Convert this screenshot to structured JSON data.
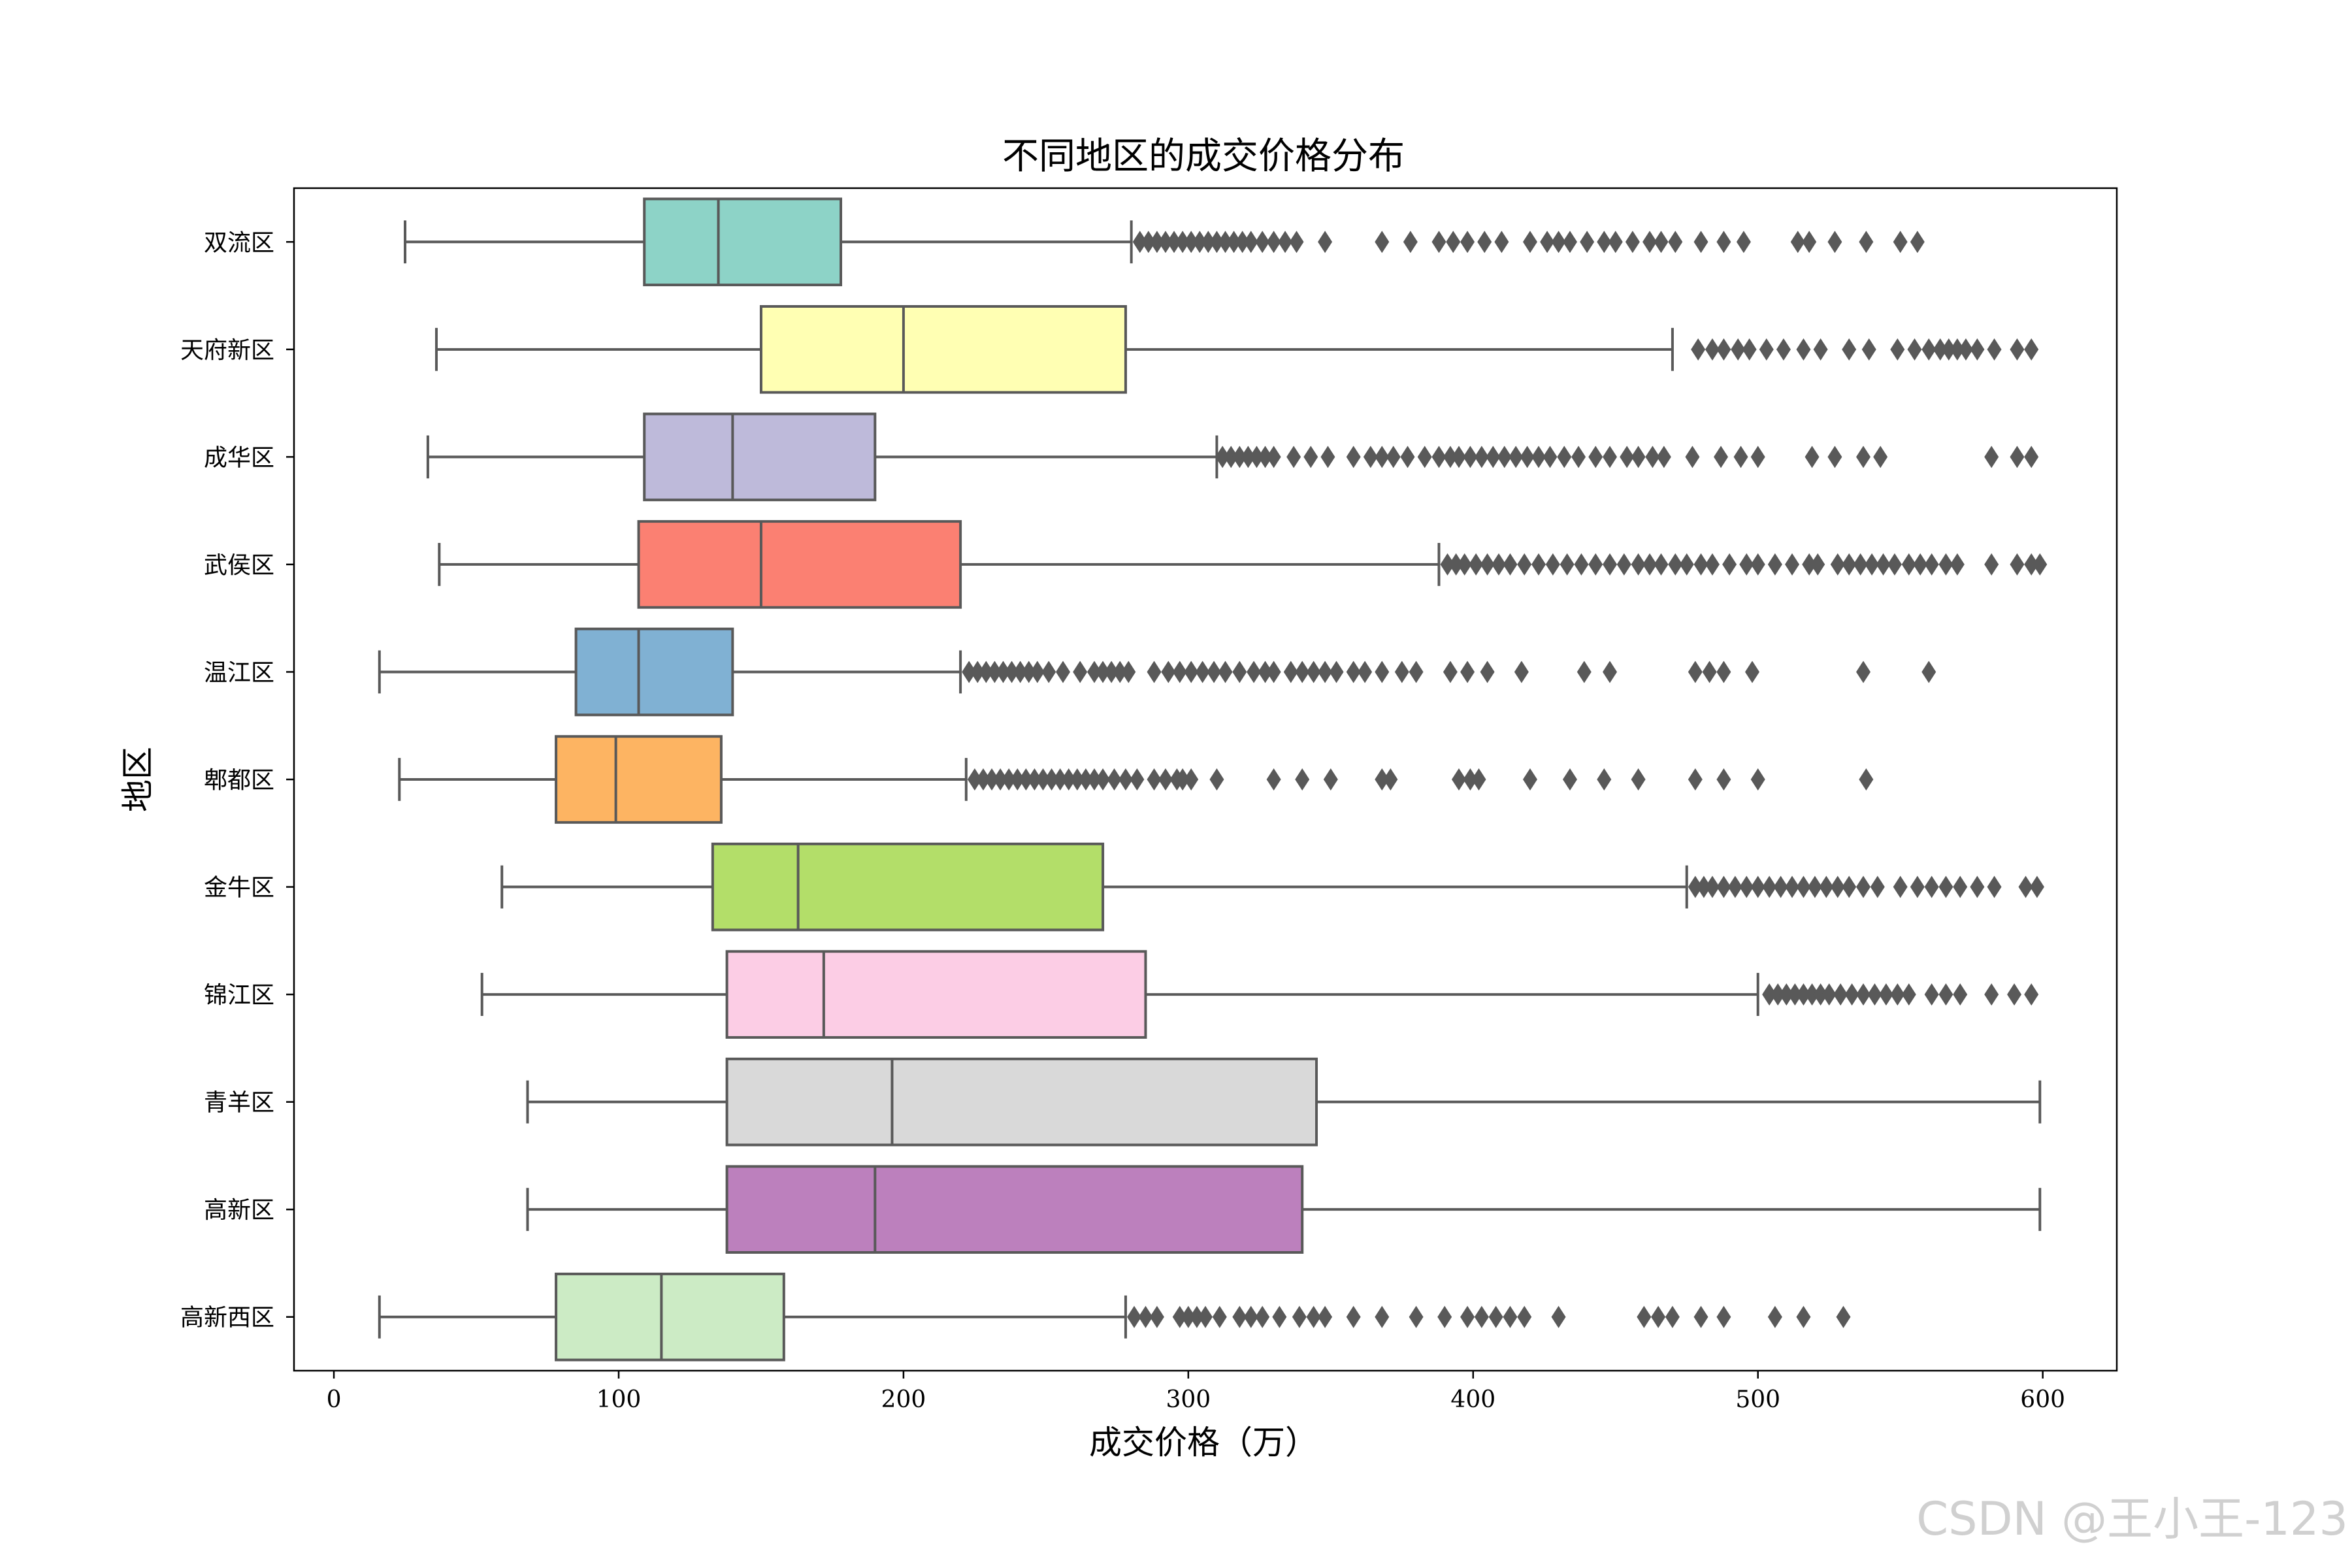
{
  "chart_data": {
    "type": "boxplot",
    "orientation": "horizontal",
    "title": "不同地区的成交价格分布",
    "xlabel": "成交价格（万）",
    "ylabel": "地区",
    "xlim": [
      -14,
      626
    ],
    "xticks": [
      0,
      100,
      200,
      300,
      400,
      500,
      600
    ],
    "grid": false,
    "legend": false,
    "series": [
      {
        "name": "双流区",
        "color": "#8dd3c7",
        "whisker_low": 25,
        "q1": 109,
        "median": 135,
        "q3": 178,
        "whisker_high": 280,
        "outliers": [
          283,
          286,
          289,
          292,
          295,
          298,
          301,
          304,
          307,
          310,
          313,
          316,
          319,
          322,
          326,
          330,
          334,
          338,
          348,
          368,
          378,
          388,
          393,
          398,
          404,
          410,
          420,
          426,
          430,
          434,
          440,
          446,
          450,
          456,
          462,
          466,
          471,
          480,
          488,
          495,
          514,
          518,
          527,
          538,
          550,
          556
        ]
      },
      {
        "name": "天府新区",
        "color": "#ffffb3",
        "whisker_low": 36,
        "q1": 150,
        "median": 200,
        "q3": 278,
        "whisker_high": 470,
        "outliers": [
          479,
          484,
          488,
          493,
          497,
          503,
          509,
          516,
          522,
          532,
          539,
          549,
          555,
          560,
          564,
          567,
          570,
          573,
          577,
          583,
          591,
          596
        ]
      },
      {
        "name": "成华区",
        "color": "#bebada",
        "whisker_low": 33,
        "q1": 109,
        "median": 140,
        "q3": 190,
        "whisker_high": 310,
        "outliers": [
          312,
          315,
          318,
          321,
          324,
          327,
          330,
          337,
          343,
          349,
          358,
          364,
          368,
          372,
          377,
          383,
          388,
          392,
          395,
          399,
          403,
          407,
          411,
          415,
          419,
          423,
          427,
          432,
          437,
          443,
          448,
          454,
          458,
          463,
          467,
          477,
          487,
          494,
          500,
          519,
          527,
          537,
          543,
          582,
          591,
          596
        ]
      },
      {
        "name": "武侯区",
        "color": "#fb8072",
        "whisker_low": 37,
        "q1": 107,
        "median": 150,
        "q3": 220,
        "whisker_high": 388,
        "outliers": [
          391,
          394,
          397,
          401,
          405,
          409,
          413,
          418,
          423,
          428,
          433,
          438,
          443,
          448,
          453,
          458,
          462,
          466,
          471,
          475,
          480,
          484,
          490,
          496,
          500,
          506,
          512,
          518,
          521,
          528,
          532,
          536,
          540,
          544,
          548,
          553,
          557,
          561,
          566,
          570,
          582,
          591,
          596,
          599
        ]
      },
      {
        "name": "温江区",
        "color": "#80b1d3",
        "whisker_low": 16,
        "q1": 85,
        "median": 107,
        "q3": 140,
        "whisker_high": 220,
        "outliers": [
          223,
          226,
          229,
          232,
          235,
          238,
          241,
          244,
          247,
          251,
          256,
          262,
          267,
          270,
          273,
          276,
          279,
          288,
          293,
          297,
          301,
          305,
          309,
          313,
          318,
          323,
          327,
          330,
          336,
          340,
          344,
          348,
          352,
          358,
          362,
          368,
          375,
          380,
          392,
          398,
          405,
          417,
          439,
          448,
          478,
          483,
          488,
          498,
          537,
          560
        ]
      },
      {
        "name": "郫都区",
        "color": "#fdb462",
        "whisker_low": 23,
        "q1": 78,
        "median": 99,
        "q3": 136,
        "whisker_high": 222,
        "outliers": [
          225,
          228,
          231,
          234,
          237,
          240,
          243,
          246,
          249,
          252,
          255,
          258,
          261,
          264,
          267,
          270,
          274,
          278,
          282,
          288,
          292,
          296,
          298,
          301,
          310,
          330,
          340,
          350,
          368,
          371,
          395,
          399,
          402,
          420,
          434,
          446,
          458,
          478,
          488,
          500,
          538
        ]
      },
      {
        "name": "金牛区",
        "color": "#b3de69",
        "whisker_low": 59,
        "q1": 133,
        "median": 163,
        "q3": 270,
        "whisker_high": 475,
        "outliers": [
          478,
          481,
          484,
          488,
          492,
          496,
          500,
          504,
          508,
          512,
          516,
          520,
          524,
          528,
          532,
          537,
          542,
          550,
          556,
          561,
          566,
          571,
          577,
          583,
          594,
          598
        ]
      },
      {
        "name": "锦江区",
        "color": "#fccde5",
        "whisker_low": 52,
        "q1": 138,
        "median": 172,
        "q3": 285,
        "whisker_high": 500,
        "outliers": [
          504,
          507,
          510,
          513,
          516,
          519,
          522,
          525,
          529,
          533,
          537,
          541,
          545,
          549,
          553,
          561,
          566,
          571,
          582,
          590,
          596
        ]
      },
      {
        "name": "青羊区",
        "color": "#d9d9d9",
        "whisker_low": 68,
        "q1": 138,
        "median": 196,
        "q3": 345,
        "whisker_high": 599,
        "outliers": []
      },
      {
        "name": "高新区",
        "color": "#bc80bd",
        "whisker_low": 68,
        "q1": 138,
        "median": 190,
        "q3": 340,
        "whisker_high": 599,
        "outliers": []
      },
      {
        "name": "高新西区",
        "color": "#ccebc5",
        "whisker_low": 16,
        "q1": 78,
        "median": 115,
        "q3": 158,
        "whisker_high": 278,
        "outliers": [
          281,
          285,
          289,
          297,
          300,
          303,
          306,
          311,
          318,
          322,
          326,
          332,
          339,
          344,
          348,
          358,
          368,
          380,
          390,
          398,
          403,
          408,
          413,
          418,
          430,
          460,
          465,
          470,
          480,
          488,
          506,
          516,
          530
        ]
      }
    ]
  },
  "watermark": "CSDN @王小王-123"
}
